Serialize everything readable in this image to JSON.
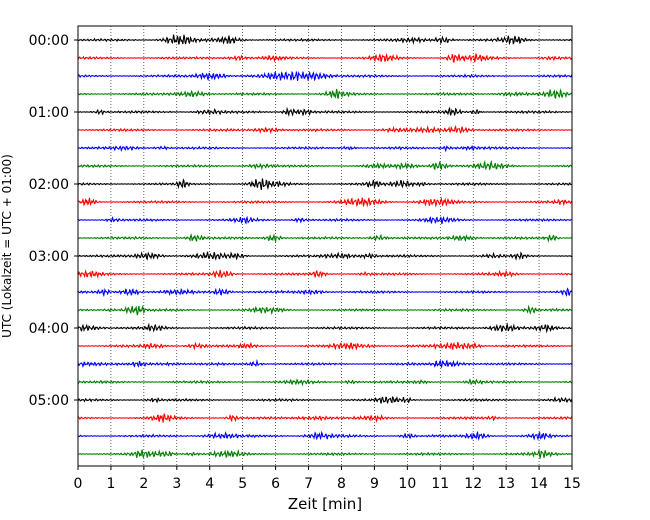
{
  "chart_data": {
    "type": "line",
    "title": "",
    "xlabel": "Zeit  [min]",
    "ylabel": "UTC (Lokalzeit = UTC + 01:00)",
    "xlim": [
      0,
      15
    ],
    "x_ticks": [
      0,
      1,
      2,
      3,
      4,
      5,
      6,
      7,
      8,
      9,
      10,
      11,
      12,
      13,
      14,
      15
    ],
    "x_tick_labels": [
      "0",
      "1",
      "2",
      "3",
      "4",
      "5",
      "6",
      "7",
      "8",
      "9",
      "10",
      "11",
      "12",
      "13",
      "14",
      "15"
    ],
    "y_tick_labels": [
      "00:00",
      "01:00",
      "02:00",
      "03:00",
      "04:00",
      "05:00"
    ],
    "trace_count": 24,
    "trace_minutes": 15,
    "trace_colors": [
      "#000000",
      "#ff0000",
      "#0000ff",
      "#007f00"
    ],
    "grid": "vertical-dotted",
    "legend": "none"
  }
}
